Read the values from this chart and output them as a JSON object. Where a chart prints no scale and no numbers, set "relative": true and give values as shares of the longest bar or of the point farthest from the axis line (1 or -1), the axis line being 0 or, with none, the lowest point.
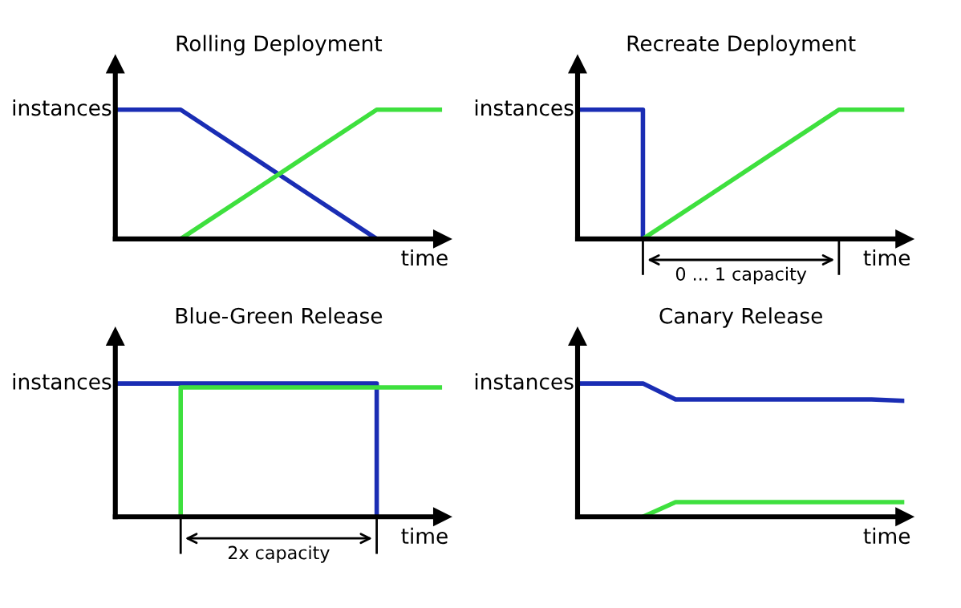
{
  "chart_data": [
    {
      "type": "line",
      "title": "Rolling Deployment",
      "ylabel": "instances",
      "xlabel": "time",
      "relative": true,
      "categories": [
        null,
        null,
        null,
        null,
        null,
        null
      ],
      "series": [
        {
          "color": "#1a2db4",
          "values": [
            1,
            1,
            0.667,
            0.333,
            0,
            null
          ]
        },
        {
          "color": "#3ee03e",
          "values": [
            null,
            0,
            0.333,
            0.667,
            1,
            1
          ]
        }
      ]
    },
    {
      "type": "line",
      "title": "Recreate Deployment",
      "ylabel": "instances",
      "xlabel": "time",
      "relative": true,
      "categories": [
        null,
        null,
        null,
        null,
        null,
        null
      ],
      "annotations": [
        "0 ... 1 capacity"
      ],
      "series": [
        {
          "type": "step",
          "color": "#1a2db4",
          "values": [
            1,
            0,
            null,
            null,
            null,
            null
          ]
        },
        {
          "color": "#3ee03e",
          "values": [
            null,
            0,
            0.333,
            0.667,
            1,
            1
          ]
        }
      ]
    },
    {
      "type": "line",
      "title": "Blue-Green Release",
      "ylabel": "instances",
      "xlabel": "time",
      "relative": true,
      "categories": [
        null,
        null,
        null,
        null,
        null,
        null
      ],
      "annotations": [
        "2x capacity"
      ],
      "series": [
        {
          "type": "step",
          "color": "#1a2db4",
          "values": [
            1,
            1,
            1,
            1,
            0,
            null
          ]
        },
        {
          "type": "step",
          "color": "#3ee03e",
          "values": [
            null,
            0,
            0.97,
            0.97,
            0.97,
            0.97
          ]
        }
      ]
    },
    {
      "type": "line",
      "title": "Canary Release",
      "ylabel": "instances",
      "xlabel": "time",
      "relative": true,
      "categories": [
        null,
        null,
        null,
        null,
        null,
        null,
        null,
        null,
        null,
        null,
        null
      ],
      "series": [
        {
          "color": "#1a2db4",
          "values": [
            1,
            1,
            1,
            0.88,
            0.88,
            0.88,
            0.88,
            0.88,
            0.88,
            0.88,
            0.87
          ]
        },
        {
          "color": "#3ee03e",
          "values": [
            null,
            null,
            0,
            0.11,
            0.11,
            0.11,
            0.11,
            0.11,
            0.11,
            0.11,
            0.11
          ]
        }
      ]
    }
  ]
}
